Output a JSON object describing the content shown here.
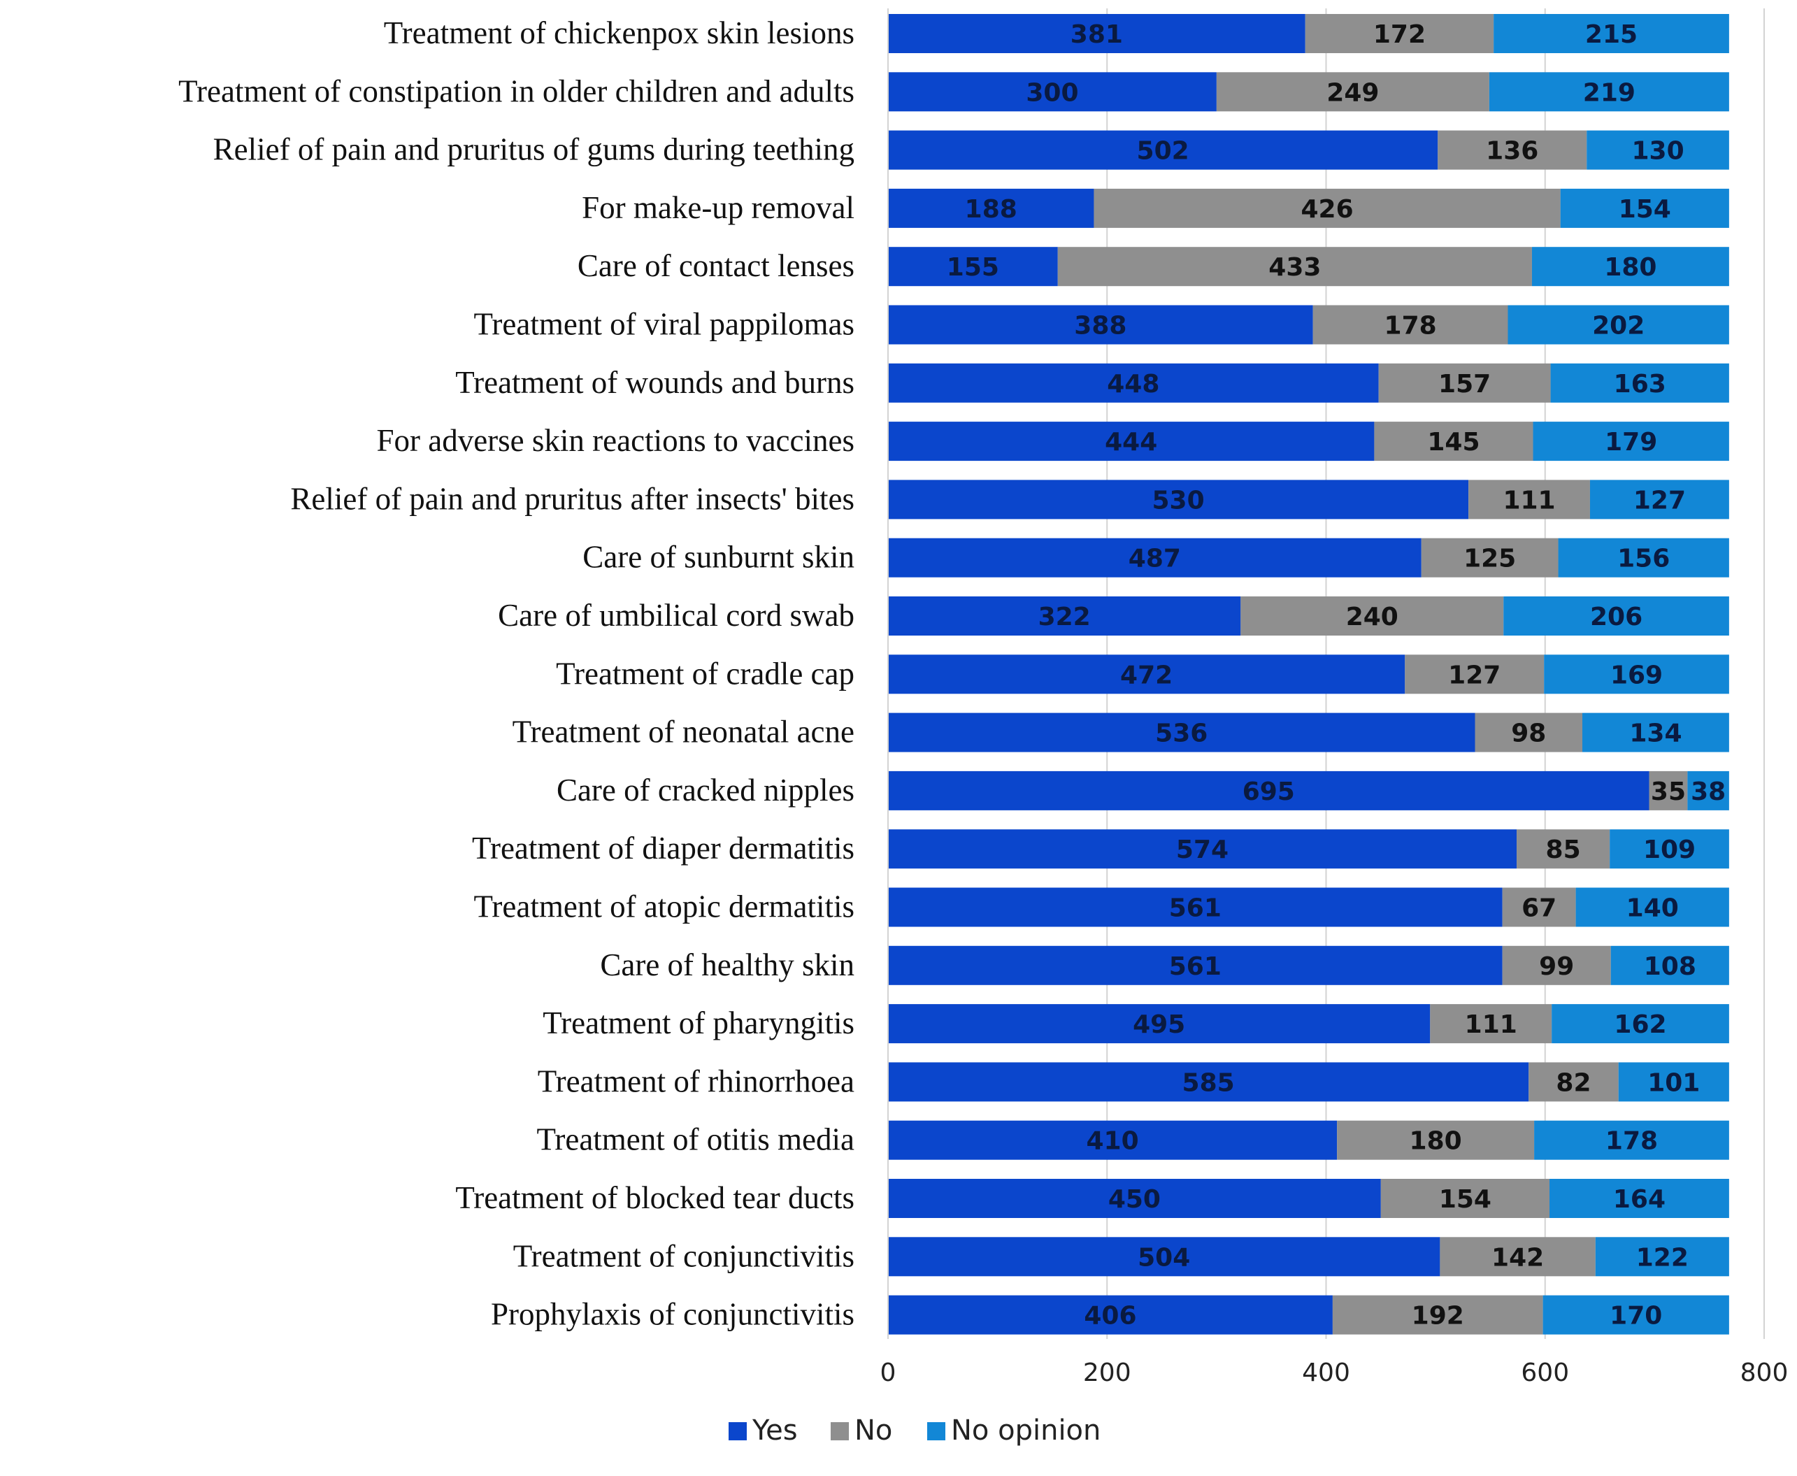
{
  "chart_data": {
    "type": "bar",
    "orientation": "horizontal",
    "stacked": true,
    "title": "",
    "xlabel": "",
    "ylabel": "",
    "xlim": [
      0,
      800
    ],
    "x_ticks": [
      0,
      200,
      400,
      600,
      800
    ],
    "grid": "vertical",
    "legend_position": "bottom",
    "categories": [
      "Treatment of chickenpox skin lesions",
      "Treatment of constipation in older children and adults",
      "Relief of pain and pruritus of gums during teething",
      "For make-up removal",
      "Care of contact lenses",
      "Treatment of viral pappilomas",
      "Treatment of wounds and burns",
      "For adverse skin reactions to vaccines",
      "Relief of pain and pruritus after insects' bites",
      "Care of sunburnt skin",
      "Care of umbilical cord swab",
      "Treatment of cradle cap",
      "Treatment of neonatal acne",
      "Care of cracked nipples",
      "Treatment of diaper dermatitis",
      "Treatment of atopic dermatitis",
      "Care of healthy skin",
      "Treatment of pharyngitis",
      "Treatment of rhinorrhoea",
      "Treatment of otitis media",
      "Treatment of blocked tear ducts",
      "Treatment of conjunctivitis",
      "Prophylaxis of conjunctivitis"
    ],
    "series": [
      {
        "name": "Yes",
        "color": "#0b46cc",
        "label_color": "#0a1a40",
        "values": [
          381,
          300,
          502,
          188,
          155,
          388,
          448,
          444,
          530,
          487,
          322,
          472,
          536,
          695,
          574,
          561,
          561,
          495,
          585,
          410,
          450,
          504,
          406
        ]
      },
      {
        "name": "No",
        "color": "#8f8f8f",
        "label_color": "#111111",
        "values": [
          172,
          249,
          136,
          426,
          433,
          178,
          157,
          145,
          111,
          125,
          240,
          127,
          98,
          35,
          85,
          67,
          99,
          111,
          82,
          180,
          154,
          142,
          192
        ]
      },
      {
        "name": "No opinion",
        "color": "#1287d6",
        "label_color": "#0a1a40",
        "values": [
          215,
          219,
          130,
          154,
          180,
          202,
          163,
          179,
          127,
          156,
          206,
          169,
          134,
          38,
          109,
          140,
          108,
          162,
          101,
          178,
          164,
          122,
          170
        ]
      }
    ]
  }
}
